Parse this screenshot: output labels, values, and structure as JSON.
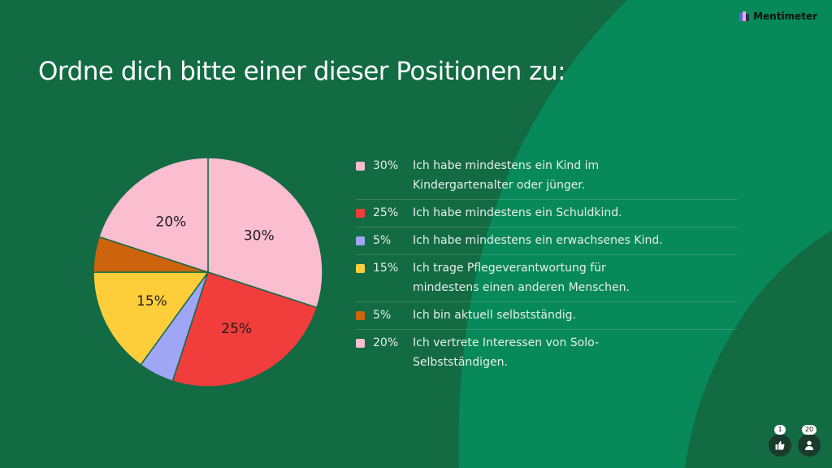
{
  "brand": {
    "name": "Mentimeter",
    "logo_icon": "mentimeter-logo-icon"
  },
  "title": "Ordne dich bitte einer dieser Positionen zu:",
  "colors": {
    "background": "#136b43",
    "background_shape": "#08895a",
    "pink": "#fbbdd0",
    "red": "#f23d3d",
    "lavender": "#9ea6f5",
    "yellow": "#fece3a",
    "orange": "#cd640d"
  },
  "chart_data": {
    "type": "pie",
    "categories": [
      "Ich habe mindestens ein Kind im Kindergartenalter oder jünger.",
      "Ich habe mindestens ein Schuldkind.",
      "Ich habe mindestens ein erwachsenes Kind.",
      "Ich trage Pflegeverantwortung für mindestens einen anderen Menschen.",
      "Ich bin aktuell selbstständig.",
      "Ich vertrete Interessen von Solo-Selbstständigen."
    ],
    "values": [
      30,
      25,
      5,
      15,
      5,
      20
    ],
    "value_labels": [
      "30%",
      "25%",
      "5%",
      "15%",
      "5%",
      "20%"
    ],
    "colors": [
      "#fbbdd0",
      "#f23d3d",
      "#9ea6f5",
      "#fece3a",
      "#cd640d",
      "#fbbdd0"
    ],
    "slice_labels_shown": [
      "30%",
      "25%",
      "",
      "15%",
      "",
      "20%"
    ],
    "legend_position": "right"
  },
  "footer": {
    "reactions": {
      "count": "1",
      "icon": "thumbs-up-icon"
    },
    "participants": {
      "count": "20",
      "icon": "person-icon"
    }
  }
}
